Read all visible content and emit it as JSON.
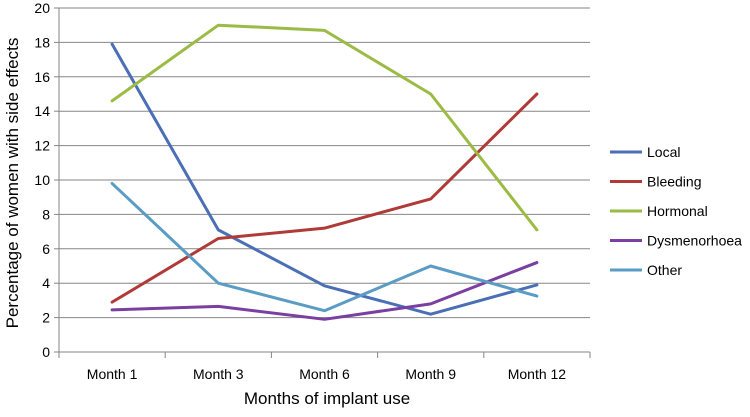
{
  "chart_data": {
    "type": "line",
    "categories": [
      "Month 1",
      "Month 3",
      "Month 6",
      "Month 9",
      "Month 12"
    ],
    "series": [
      {
        "name": "Local",
        "color": "#4a6fb5",
        "values": [
          17.9,
          7.1,
          3.85,
          2.2,
          3.9
        ]
      },
      {
        "name": "Bleeding",
        "color": "#b03a37",
        "values": [
          2.9,
          6.6,
          7.2,
          8.9,
          15.0
        ]
      },
      {
        "name": "Hormonal",
        "color": "#9bbb44",
        "values": [
          14.6,
          19.0,
          18.7,
          15.0,
          7.1
        ]
      },
      {
        "name": "Dysmenorhoea",
        "color": "#7a3fa0",
        "values": [
          2.45,
          2.65,
          1.9,
          2.8,
          5.2
        ]
      },
      {
        "name": "Other",
        "color": "#5a9cc4",
        "values": [
          9.8,
          4.0,
          2.4,
          5.0,
          3.25
        ]
      }
    ],
    "xlabel": "Months of implant use",
    "ylabel": "Percentage of women with side effects",
    "ylim": [
      0,
      20
    ],
    "yticks": [
      0,
      2,
      4,
      6,
      8,
      10,
      12,
      14,
      16,
      18,
      20
    ],
    "grid": true,
    "legend_position": "right"
  }
}
